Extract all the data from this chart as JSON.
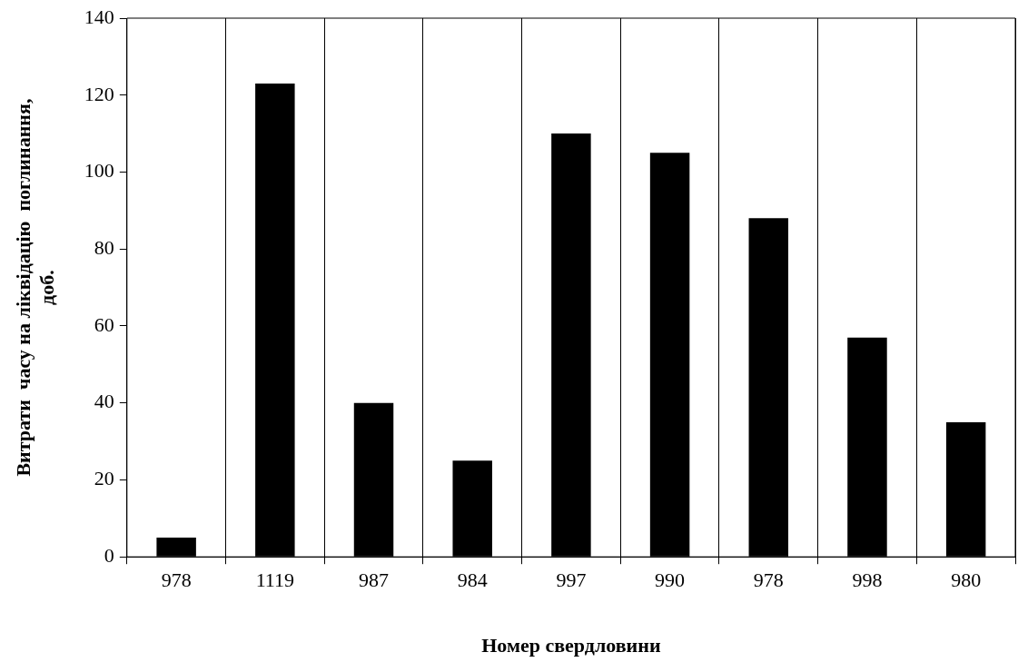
{
  "chart_data": {
    "type": "bar",
    "xlabel": "Номер свердловини",
    "ylabel": "Витрати  часу на ліквідацію  поглинання,\nдоб.",
    "categories": [
      "978",
      "1119",
      "987",
      "984",
      "997",
      "990",
      "978",
      "998",
      "980"
    ],
    "values": [
      5,
      123,
      40,
      25,
      110,
      105,
      88,
      57,
      35
    ],
    "color": "#000000",
    "ylim": [
      0,
      140
    ],
    "yticks": [
      0,
      20,
      40,
      60,
      80,
      100,
      120,
      140
    ],
    "grid": "x"
  }
}
